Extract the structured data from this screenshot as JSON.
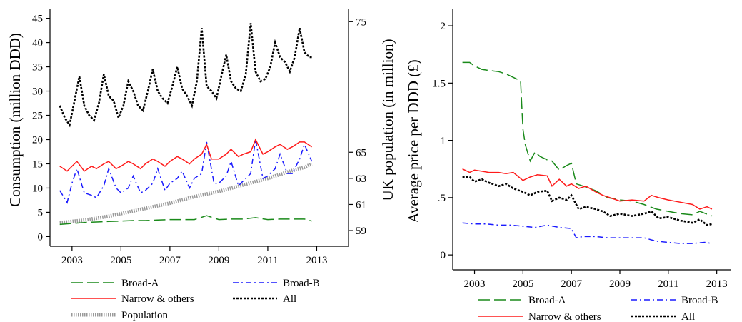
{
  "chart_data": [
    {
      "type": "line",
      "ylabel": "Consumption (million DDD)",
      "y2label": "UK population (in million)",
      "ylim": [
        -2,
        47
      ],
      "y2lim": [
        57.8,
        76.0
      ],
      "xlim": [
        2002.1,
        2014.3
      ],
      "x_ticks": [
        "2003",
        "2005",
        "2007",
        "2009",
        "2011",
        "2013"
      ],
      "y_ticks": [
        "0",
        "5",
        "10",
        "15",
        "20",
        "25",
        "30",
        "35",
        "40",
        "45"
      ],
      "y2_ticks": [
        "59",
        "61",
        "63",
        "65",
        "75"
      ],
      "legend_placement": "bottom",
      "series": [
        {
          "name": "Broad-A",
          "color": "#1a8a1a",
          "dash": "long",
          "x": [
            2002.5,
            2003.0,
            2003.5,
            2004.0,
            2004.5,
            2005.0,
            2005.5,
            2006.0,
            2006.5,
            2007.0,
            2007.5,
            2008.0,
            2008.5,
            2009.0,
            2009.5,
            2010.0,
            2010.5,
            2011.0,
            2011.5,
            2012.0,
            2012.5,
            2012.8
          ],
          "values": [
            2.5,
            2.7,
            2.9,
            3.0,
            3.1,
            3.2,
            3.3,
            3.3,
            3.4,
            3.5,
            3.5,
            3.5,
            4.3,
            3.5,
            3.6,
            3.6,
            3.9,
            3.5,
            3.6,
            3.6,
            3.6,
            3.2
          ]
        },
        {
          "name": "Broad-B",
          "color": "#1a1aff",
          "dash": "dashdot",
          "x": [
            2002.5,
            2002.8,
            2003.0,
            2003.2,
            2003.5,
            2003.8,
            2004.0,
            2004.3,
            2004.5,
            2004.8,
            2005.0,
            2005.3,
            2005.5,
            2005.8,
            2006.0,
            2006.3,
            2006.5,
            2006.8,
            2007.0,
            2007.3,
            2007.5,
            2007.8,
            2008.0,
            2008.3,
            2008.5,
            2008.8,
            2009.0,
            2009.3,
            2009.5,
            2009.8,
            2010.0,
            2010.3,
            2010.5,
            2010.8,
            2011.0,
            2011.3,
            2011.5,
            2011.8,
            2012.0,
            2012.3,
            2012.5,
            2012.8
          ],
          "values": [
            9.5,
            7.0,
            11.0,
            14.0,
            9.0,
            8.5,
            8.0,
            10.5,
            14.0,
            10.0,
            9.0,
            10.0,
            12.5,
            9.0,
            9.5,
            11.0,
            14.0,
            9.5,
            11.0,
            12.0,
            13.5,
            10.0,
            12.0,
            13.0,
            19.5,
            11.0,
            11.0,
            12.5,
            15.5,
            10.5,
            11.5,
            13.0,
            20.0,
            12.0,
            12.5,
            14.0,
            17.0,
            13.0,
            13.0,
            16.0,
            19.0,
            15.5
          ]
        },
        {
          "name": "Narrow & others",
          "color": "#ff1a1a",
          "dash": "solid",
          "x": [
            2002.5,
            2002.8,
            2003.0,
            2003.2,
            2003.5,
            2003.8,
            2004.0,
            2004.3,
            2004.5,
            2004.8,
            2005.0,
            2005.3,
            2005.5,
            2005.8,
            2006.0,
            2006.3,
            2006.5,
            2006.8,
            2007.0,
            2007.3,
            2007.5,
            2007.8,
            2008.0,
            2008.3,
            2008.5,
            2008.7,
            2009.0,
            2009.3,
            2009.5,
            2009.8,
            2010.0,
            2010.3,
            2010.5,
            2010.8,
            2011.0,
            2011.3,
            2011.5,
            2011.8,
            2012.0,
            2012.3,
            2012.5,
            2012.8
          ],
          "values": [
            14.5,
            13.5,
            14.5,
            15.5,
            13.5,
            14.5,
            14.0,
            15.0,
            15.5,
            14.0,
            14.5,
            15.5,
            15.0,
            14.0,
            15.0,
            16.0,
            15.5,
            14.5,
            15.5,
            16.5,
            16.0,
            15.0,
            16.0,
            17.0,
            19.0,
            16.0,
            16.0,
            17.0,
            18.0,
            16.5,
            17.0,
            17.5,
            20.0,
            17.0,
            17.5,
            18.5,
            19.0,
            18.0,
            18.5,
            19.5,
            19.5,
            18.5
          ]
        },
        {
          "name": "All",
          "color": "#000000",
          "dash": "dotted",
          "x": [
            2002.5,
            2002.7,
            2002.9,
            2003.1,
            2003.3,
            2003.5,
            2003.7,
            2003.9,
            2004.1,
            2004.3,
            2004.5,
            2004.7,
            2004.9,
            2005.1,
            2005.3,
            2005.5,
            2005.7,
            2005.9,
            2006.1,
            2006.3,
            2006.5,
            2006.7,
            2006.9,
            2007.1,
            2007.3,
            2007.5,
            2007.7,
            2007.9,
            2008.1,
            2008.3,
            2008.5,
            2008.7,
            2008.9,
            2009.1,
            2009.3,
            2009.5,
            2009.7,
            2009.9,
            2010.1,
            2010.3,
            2010.5,
            2010.7,
            2010.9,
            2011.1,
            2011.3,
            2011.5,
            2011.7,
            2011.9,
            2012.1,
            2012.3,
            2012.5,
            2012.7,
            2012.8
          ],
          "values": [
            27.0,
            24.5,
            23.0,
            28.0,
            33.0,
            27.0,
            25.0,
            24.0,
            27.5,
            33.5,
            29.0,
            28.0,
            24.5,
            27.0,
            32.0,
            30.0,
            27.0,
            26.0,
            30.0,
            34.5,
            30.0,
            28.5,
            27.5,
            31.0,
            35.0,
            30.5,
            29.0,
            27.0,
            32.0,
            43.0,
            31.0,
            30.0,
            28.5,
            33.0,
            37.5,
            32.0,
            30.5,
            30.0,
            33.5,
            44.0,
            34.0,
            32.0,
            32.5,
            35.0,
            40.0,
            37.0,
            36.0,
            34.0,
            37.0,
            43.0,
            38.0,
            37.0,
            37.0
          ]
        },
        {
          "name": "Population",
          "color": "#999999",
          "dash": "hatched",
          "axis": "y2",
          "x": [
            2002.5,
            2003.0,
            2003.5,
            2004.0,
            2004.5,
            2005.0,
            2005.5,
            2006.0,
            2006.5,
            2007.0,
            2007.5,
            2008.0,
            2008.5,
            2009.0,
            2009.5,
            2010.0,
            2010.5,
            2011.0,
            2011.5,
            2012.0,
            2012.5,
            2012.8
          ],
          "values": [
            59.6,
            59.7,
            59.8,
            59.95,
            60.1,
            60.3,
            60.5,
            60.7,
            60.9,
            61.1,
            61.35,
            61.6,
            61.8,
            62.0,
            62.25,
            62.5,
            62.75,
            63.0,
            63.3,
            63.6,
            63.85,
            64.1
          ]
        }
      ]
    },
    {
      "type": "line",
      "ylabel": "Average price per DDD (£)",
      "ylim": [
        -0.13,
        2.15
      ],
      "xlim": [
        2002.1,
        2013.6
      ],
      "x_ticks": [
        "2003",
        "2005",
        "2007",
        "2009",
        "2011",
        "2013"
      ],
      "y_ticks": [
        "0",
        ".5",
        "1",
        "1.5",
        "2"
      ],
      "legend_placement": "bottom",
      "series": [
        {
          "name": "Broad-A",
          "color": "#1a8a1a",
          "dash": "long",
          "x": [
            2002.5,
            2002.8,
            2003.0,
            2003.3,
            2003.6,
            2004.0,
            2004.3,
            2004.6,
            2004.9,
            2005.0,
            2005.1,
            2005.3,
            2005.5,
            2005.7,
            2006.0,
            2006.2,
            2006.5,
            2006.8,
            2007.0,
            2007.2,
            2007.5,
            2008.0,
            2008.5,
            2009.0,
            2009.5,
            2010.0,
            2010.5,
            2011.0,
            2011.5,
            2012.0,
            2012.3,
            2012.8
          ],
          "values": [
            1.68,
            1.68,
            1.65,
            1.62,
            1.61,
            1.6,
            1.58,
            1.55,
            1.52,
            1.1,
            0.96,
            0.82,
            0.9,
            0.86,
            0.83,
            0.82,
            0.74,
            0.78,
            0.8,
            0.62,
            0.6,
            0.56,
            0.5,
            0.48,
            0.47,
            0.44,
            0.4,
            0.38,
            0.36,
            0.35,
            0.38,
            0.34
          ]
        },
        {
          "name": "Broad-B",
          "color": "#1a1aff",
          "dash": "dashdot",
          "x": [
            2002.5,
            2003.0,
            2003.5,
            2004.0,
            2004.5,
            2005.0,
            2005.5,
            2006.0,
            2006.5,
            2007.0,
            2007.2,
            2007.5,
            2008.0,
            2008.5,
            2009.0,
            2009.5,
            2010.0,
            2010.5,
            2011.0,
            2011.5,
            2012.0,
            2012.5,
            2012.8
          ],
          "values": [
            0.28,
            0.27,
            0.27,
            0.26,
            0.26,
            0.25,
            0.24,
            0.26,
            0.24,
            0.23,
            0.15,
            0.16,
            0.16,
            0.15,
            0.15,
            0.15,
            0.15,
            0.12,
            0.11,
            0.1,
            0.1,
            0.11,
            0.1
          ]
        },
        {
          "name": "Narrow & others",
          "color": "#ff1a1a",
          "dash": "solid",
          "x": [
            2002.5,
            2002.8,
            2003.0,
            2003.3,
            2003.6,
            2004.0,
            2004.3,
            2004.6,
            2005.0,
            2005.3,
            2005.6,
            2006.0,
            2006.2,
            2006.5,
            2006.8,
            2007.0,
            2007.3,
            2007.6,
            2008.0,
            2008.3,
            2008.6,
            2009.0,
            2009.5,
            2010.0,
            2010.3,
            2010.6,
            2011.0,
            2011.5,
            2012.0,
            2012.3,
            2012.6,
            2012.8
          ],
          "values": [
            0.75,
            0.72,
            0.74,
            0.73,
            0.72,
            0.72,
            0.71,
            0.72,
            0.65,
            0.68,
            0.7,
            0.69,
            0.6,
            0.66,
            0.6,
            0.62,
            0.58,
            0.6,
            0.55,
            0.52,
            0.5,
            0.47,
            0.48,
            0.47,
            0.52,
            0.5,
            0.48,
            0.46,
            0.44,
            0.4,
            0.42,
            0.4
          ]
        },
        {
          "name": "All",
          "color": "#000000",
          "dash": "dotted",
          "x": [
            2002.5,
            2002.8,
            2003.0,
            2003.3,
            2003.6,
            2004.0,
            2004.3,
            2004.6,
            2005.0,
            2005.3,
            2005.6,
            2006.0,
            2006.2,
            2006.5,
            2006.8,
            2007.0,
            2007.3,
            2007.6,
            2008.0,
            2008.3,
            2008.6,
            2009.0,
            2009.5,
            2010.0,
            2010.3,
            2010.6,
            2011.0,
            2011.5,
            2012.0,
            2012.3,
            2012.6,
            2012.8
          ],
          "values": [
            0.68,
            0.68,
            0.64,
            0.66,
            0.63,
            0.6,
            0.62,
            0.58,
            0.55,
            0.52,
            0.55,
            0.56,
            0.47,
            0.5,
            0.48,
            0.52,
            0.4,
            0.42,
            0.4,
            0.38,
            0.34,
            0.36,
            0.34,
            0.36,
            0.38,
            0.32,
            0.33,
            0.3,
            0.28,
            0.31,
            0.26,
            0.27
          ]
        }
      ]
    }
  ]
}
